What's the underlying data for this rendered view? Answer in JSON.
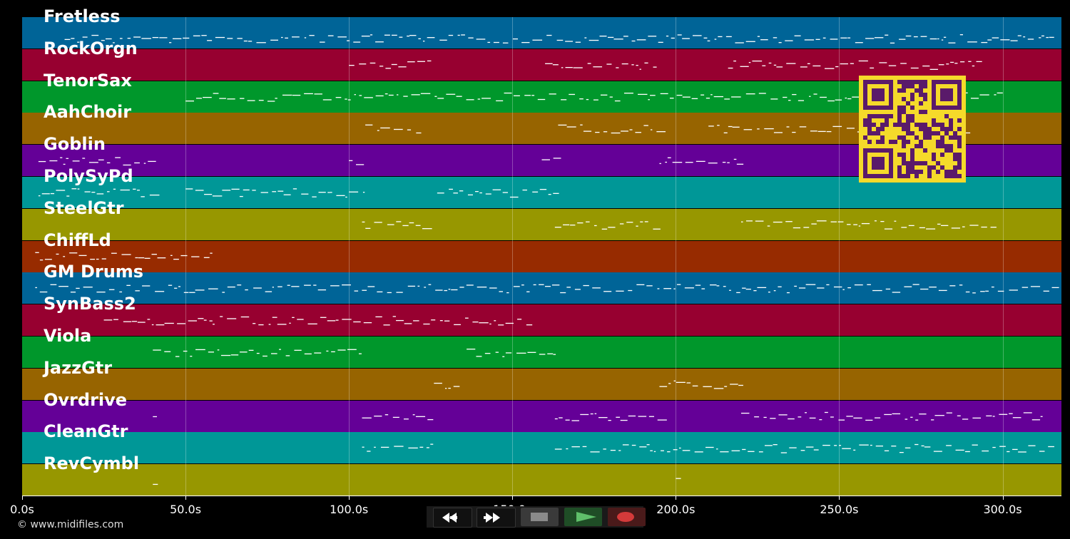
{
  "tracks": [
    {
      "name": "Fretless",
      "color": "#006497"
    },
    {
      "name": "RockOrgn",
      "color": "#970030"
    },
    {
      "name": "TenorSax",
      "color": "#00972b"
    },
    {
      "name": "AahChoir",
      "color": "#976400"
    },
    {
      "name": "Goblin",
      "color": "#640097"
    },
    {
      "name": "PolySyPd",
      "color": "#009797"
    },
    {
      "name": "SteelGtr",
      "color": "#979700"
    },
    {
      "name": "ChiffLd",
      "color": "#972b00"
    },
    {
      "name": "GM Drums",
      "color": "#006497"
    },
    {
      "name": "SynBass2",
      "color": "#970030"
    },
    {
      "name": "Viola",
      "color": "#00972b"
    },
    {
      "name": "JazzGtr",
      "color": "#976400"
    },
    {
      "name": "Ovrdrive",
      "color": "#640097"
    },
    {
      "name": "CleanGtr",
      "color": "#009797"
    },
    {
      "name": "RevCymbl",
      "color": "#979700"
    }
  ],
  "timeline": {
    "max_seconds": 318,
    "ticks": [
      "0.0s",
      "50.0s",
      "100.0s",
      "150.0s",
      "200.0s",
      "250.0s",
      "300.0s"
    ],
    "tick_seconds": [
      0,
      50,
      100,
      150,
      200,
      250,
      300
    ]
  },
  "transport": {
    "buttons": [
      {
        "name": "rewind-button",
        "icon": "rewind-icon"
      },
      {
        "name": "fast-forward-button",
        "icon": "fast-forward-icon"
      },
      {
        "name": "stop-button",
        "icon": "stop-icon"
      },
      {
        "name": "play-button",
        "icon": "play-icon"
      },
      {
        "name": "record-button",
        "icon": "record-icon"
      }
    ]
  },
  "footer": {
    "copyright": "© www.midifiles.com"
  },
  "colors": {
    "background": "#000000",
    "note": "#ffffff",
    "qr_bg": "#f5da2a",
    "qr_fg": "#5a1a6a"
  }
}
